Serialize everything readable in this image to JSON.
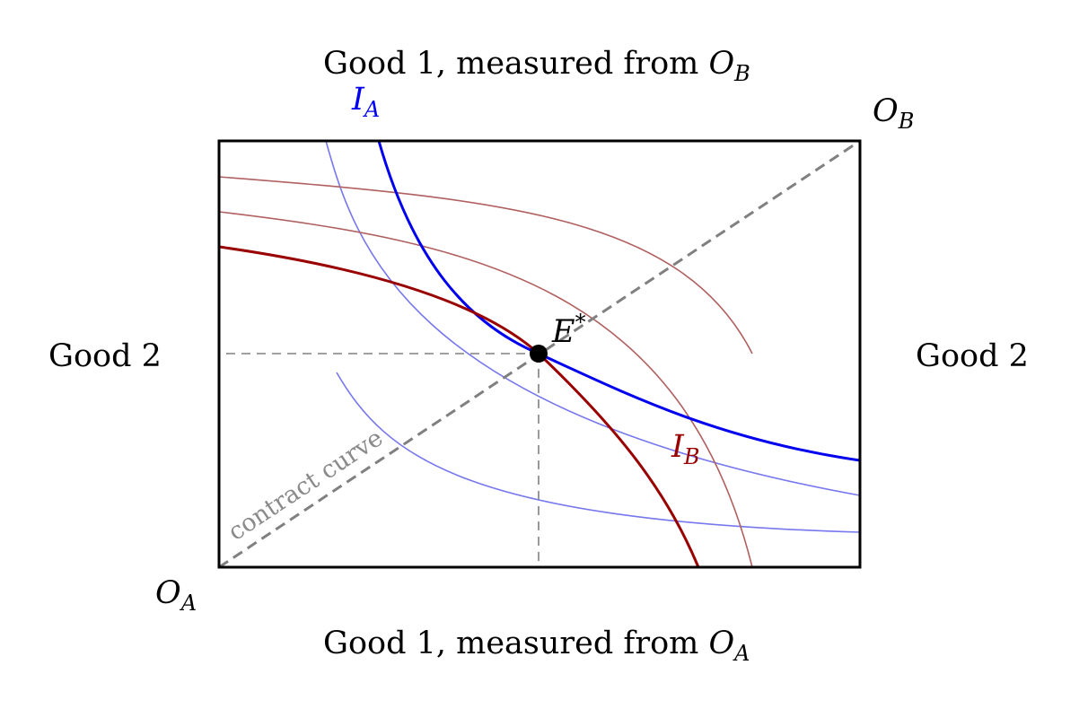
{
  "labels": {
    "top": {
      "text": "Good 1, measured from ",
      "sym": "O",
      "sub": "B"
    },
    "bottom": {
      "text": "Good 1, measured from ",
      "sym": "O",
      "sub": "A"
    },
    "left": "Good 2",
    "right": "Good 2",
    "origin_a": {
      "sym": "O",
      "sub": "A"
    },
    "origin_b": {
      "sym": "O",
      "sub": "B"
    },
    "ia": {
      "sym": "I",
      "sub": "A"
    },
    "ib": {
      "sym": "I",
      "sub": "B"
    },
    "equilibrium": {
      "sym": "E",
      "sup": "*"
    },
    "contract_curve": "contract curve"
  },
  "colors": {
    "box": "#000000",
    "agent_a": "#0000ee",
    "agent_a_light": "#7777ee",
    "agent_b": "#990000",
    "agent_b_light": "#b06060",
    "guide": "#808080"
  }
}
